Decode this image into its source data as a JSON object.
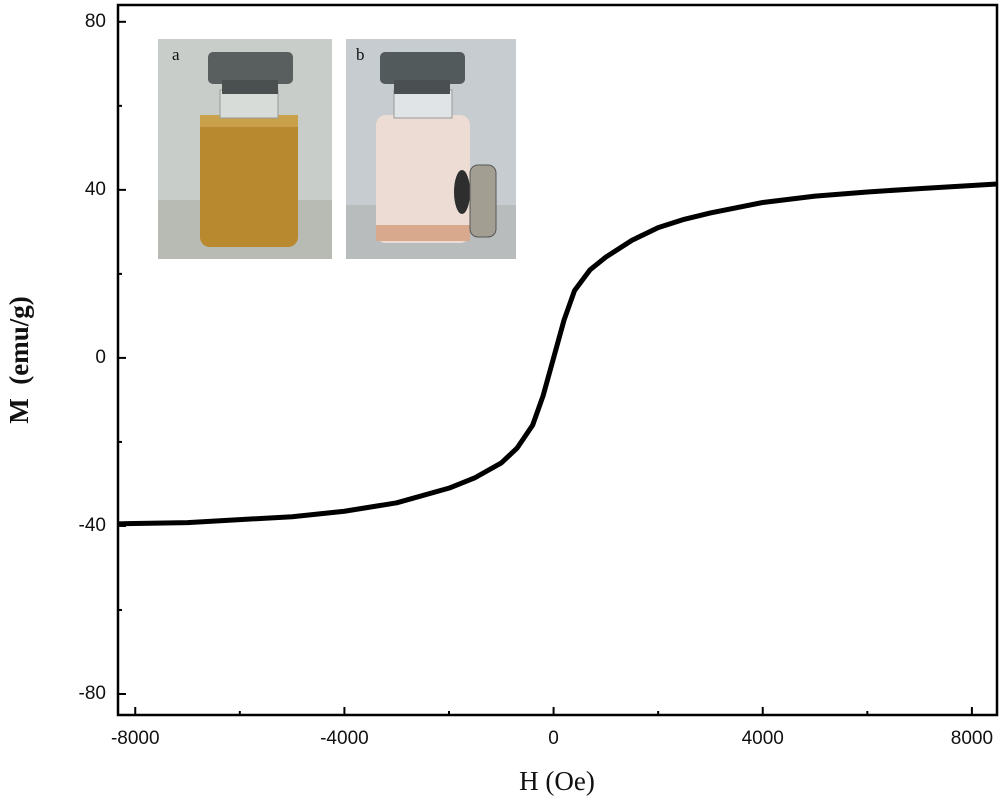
{
  "chart_data": {
    "type": "line",
    "x_label": "H (Oe)",
    "y_label": "M  (emu/g)",
    "annotations": [
      "a",
      "b"
    ],
    "x": [
      -8330,
      -7000,
      -6000,
      -5000,
      -4000,
      -3000,
      -2000,
      -1500,
      -1000,
      -700,
      -400,
      -200,
      0,
      200,
      400,
      700,
      1000,
      1500,
      2000,
      2500,
      3000,
      4000,
      5000,
      6000,
      7000,
      8480
    ],
    "series": [
      {
        "name": "M",
        "color": "#000000",
        "values": [
          -39.5,
          -39.2,
          -38.5,
          -37.8,
          -36.5,
          -34.5,
          -31,
          -28.5,
          -25,
          -21.5,
          -16,
          -9,
          0,
          9,
          16,
          21,
          24,
          28,
          31,
          33,
          34.5,
          37,
          38.5,
          39.5,
          40.3,
          41.4
        ]
      }
    ],
    "xlim": [
      -8330,
      8480
    ],
    "ylim": [
      -85,
      84
    ],
    "xticks": [
      -8000,
      -4000,
      0,
      4000,
      8000
    ],
    "yticks": [
      -80,
      -40,
      0,
      40,
      80
    ],
    "xminorticks": [
      -6000,
      -2000,
      2000,
      6000
    ],
    "yminorticks": [
      -60,
      -20,
      20,
      60
    ]
  }
}
